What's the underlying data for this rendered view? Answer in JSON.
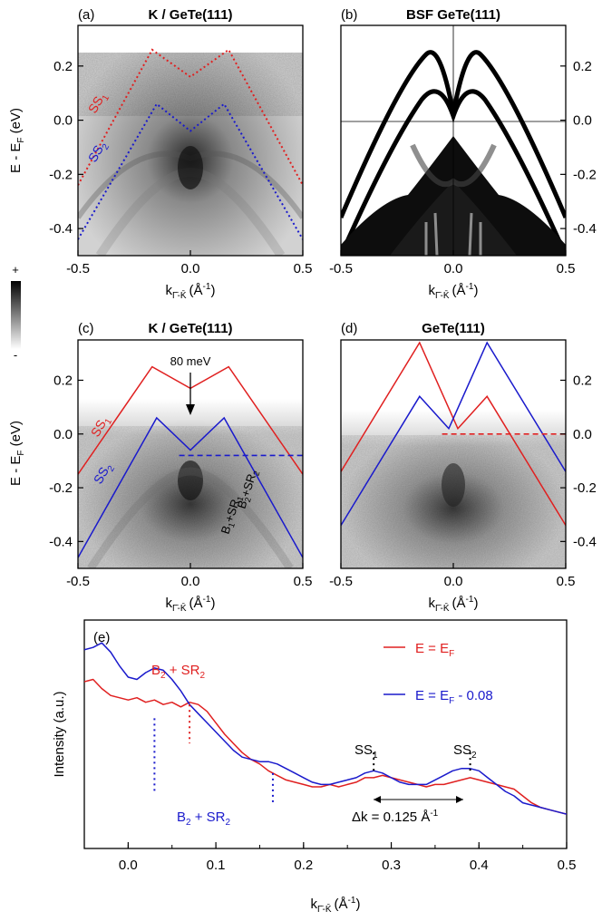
{
  "colorbar": {
    "plus": "+",
    "minus": "-"
  },
  "colors": {
    "ss1": "#e02020",
    "ss2": "#1a1acc",
    "dashed_red": "#e02020",
    "dashed_blue": "#1a1acc"
  },
  "chart_data": [
    {
      "panel": "(a)",
      "title": "K / GeTe(111)",
      "type": "heatmap",
      "xlabel": "k",
      "xlabel_sub": "Γ̄-K̄",
      "xlabel_unit": "(Å",
      "xlabel_exp": "-1",
      "xlabel_close": ")",
      "ylabel": "E - E",
      "ylabel_sub": "F",
      "ylabel_unit": " (eV)",
      "xlim": [
        -0.5,
        0.5
      ],
      "ylim": [
        -0.5,
        0.35
      ],
      "xticks": [
        "-0.5",
        "0.0",
        "0.5"
      ],
      "yticks": [
        "0.2",
        "0.0",
        "-0.2",
        "-0.4"
      ],
      "curve_labels": [
        {
          "text": "SS",
          "sub": "1",
          "series": "SS1"
        },
        {
          "text": "SS",
          "sub": "2",
          "series": "SS2"
        }
      ],
      "series": [
        {
          "key": "SS1",
          "style": "dotted",
          "x": [
            -0.5,
            -0.17,
            0.0,
            0.17,
            0.5
          ],
          "y": [
            -0.24,
            0.26,
            0.16,
            0.26,
            -0.24
          ]
        },
        {
          "key": "SS2",
          "style": "dotted",
          "x": [
            -0.5,
            -0.15,
            0.0,
            0.15,
            0.5
          ],
          "y": [
            -0.44,
            0.06,
            -0.04,
            0.06,
            -0.44
          ]
        }
      ]
    },
    {
      "panel": "(b)",
      "title": "BSF GeTe(111)",
      "type": "heatmap",
      "xlabel": "k",
      "xlabel_sub": "Γ̄-K̄",
      "xlabel_unit": "(Å",
      "xlabel_exp": "-1",
      "xlabel_close": ")",
      "xlim": [
        -0.5,
        0.5
      ],
      "ylim": [
        -0.5,
        0.35
      ],
      "xticks": [
        "-0.5",
        "0.0",
        "0.5"
      ],
      "yticks": [
        "0.2",
        "0.0",
        "-0.2",
        "-0.4"
      ]
    },
    {
      "panel": "(c)",
      "title": "K / GeTe(111)",
      "type": "heatmap",
      "xlabel": "k",
      "xlabel_sub": "Γ̄-K̄",
      "xlabel_unit": "(Å",
      "xlabel_exp": "-1",
      "xlabel_close": ")",
      "ylabel": "E - E",
      "ylabel_sub": "F",
      "ylabel_unit": " (eV)",
      "xlim": [
        -0.5,
        0.5
      ],
      "ylim": [
        -0.5,
        0.35
      ],
      "xticks": [
        "-0.5",
        "0.0",
        "0.5"
      ],
      "yticks": [
        "0.2",
        "0.0",
        "-0.2",
        "-0.4"
      ],
      "annotation": "80 meV",
      "band_labels": [
        {
          "text": "B",
          "sub": "2",
          "rest": "+SR",
          "sub2": "2"
        },
        {
          "text": "B",
          "sub": "1",
          "rest": "+SR",
          "sub2": "1"
        }
      ],
      "curve_labels": [
        {
          "text": "SS",
          "sub": "1",
          "series": "SS1"
        },
        {
          "text": "SS",
          "sub": "2",
          "series": "SS2"
        }
      ],
      "fermi_line": {
        "y": -0.08,
        "x": [
          -0.05,
          0.5
        ]
      },
      "series": [
        {
          "key": "SS1",
          "style": "solid",
          "x": [
            -0.5,
            -0.17,
            0.0,
            0.17,
            0.5
          ],
          "y": [
            -0.15,
            0.25,
            0.17,
            0.25,
            -0.15
          ]
        },
        {
          "key": "SS2",
          "style": "solid",
          "x": [
            -0.5,
            -0.15,
            0.0,
            0.15,
            0.5
          ],
          "y": [
            -0.46,
            0.06,
            -0.06,
            0.06,
            -0.46
          ]
        }
      ]
    },
    {
      "panel": "(d)",
      "title": "GeTe(111)",
      "type": "heatmap",
      "xlabel": "k",
      "xlabel_sub": "Γ̄-K̄",
      "xlabel_unit": "(Å",
      "xlabel_exp": "-1",
      "xlabel_close": ")",
      "xlim": [
        -0.5,
        0.5
      ],
      "ylim": [
        -0.5,
        0.35
      ],
      "xticks": [
        "-0.5",
        "0.0",
        "0.5"
      ],
      "yticks": [
        "0.2",
        "0.0",
        "-0.2",
        "-0.4"
      ],
      "fermi_line": {
        "y": 0.0,
        "x": [
          -0.05,
          0.5
        ]
      },
      "series": [
        {
          "key": "SS1",
          "style": "solid",
          "x": [
            -0.5,
            -0.15,
            0.02,
            0.15,
            0.5
          ],
          "y": [
            -0.14,
            0.34,
            0.02,
            0.14,
            -0.34
          ]
        },
        {
          "key": "SS2",
          "style": "solid",
          "x": [
            -0.5,
            -0.15,
            -0.02,
            0.15,
            0.5
          ],
          "y": [
            -0.34,
            0.14,
            0.02,
            0.34,
            -0.14
          ]
        }
      ]
    },
    {
      "panel": "(e)",
      "type": "line",
      "xlabel": "k",
      "xlabel_sub": "Γ̄-K̄",
      "xlabel_unit": "(Å",
      "xlabel_exp": "-1",
      "xlabel_close": ")",
      "ylabel": "Intensity (a.u.)",
      "xlim": [
        -0.05,
        0.5
      ],
      "ylim": [
        0,
        1
      ],
      "xticks": [
        "0.0",
        "0.1",
        "0.2",
        "0.3",
        "0.4",
        "0.5"
      ],
      "legend": [
        {
          "key": "red",
          "label_a": "E = E",
          "label_sub": "F",
          "label_b": ""
        },
        {
          "key": "blue",
          "label_a": "E = E",
          "label_sub": "F",
          "label_b": " - 0.08"
        }
      ],
      "annotations": {
        "b2_red": {
          "text": "B",
          "sub": "2",
          "rest": " + SR",
          "sub2": "2"
        },
        "b2_blue": {
          "text": "B",
          "sub": "2",
          "rest": " + SR",
          "sub2": "2"
        },
        "ss1": {
          "text": "SS",
          "sub": "1"
        },
        "ss2": {
          "text": "SS",
          "sub": "2"
        },
        "dk": {
          "text": "Δk = 0.125 Å",
          "exp": "-1"
        }
      },
      "markers": [
        {
          "key": "red",
          "x": 0.07
        },
        {
          "key": "blue",
          "x": 0.03
        },
        {
          "key": "blue",
          "x": 0.165
        },
        {
          "key": "black",
          "x": 0.28
        },
        {
          "key": "black",
          "x": 0.39
        }
      ],
      "series": [
        {
          "key": "red",
          "x": [
            -0.05,
            -0.04,
            -0.03,
            -0.02,
            -0.01,
            0.0,
            0.01,
            0.02,
            0.03,
            0.04,
            0.05,
            0.06,
            0.07,
            0.08,
            0.09,
            0.1,
            0.11,
            0.12,
            0.13,
            0.14,
            0.15,
            0.16,
            0.17,
            0.18,
            0.19,
            0.2,
            0.21,
            0.22,
            0.23,
            0.24,
            0.25,
            0.26,
            0.27,
            0.28,
            0.29,
            0.3,
            0.31,
            0.32,
            0.33,
            0.34,
            0.35,
            0.36,
            0.37,
            0.38,
            0.39,
            0.4,
            0.41,
            0.42,
            0.43,
            0.44,
            0.45,
            0.46,
            0.47,
            0.48,
            0.49,
            0.5
          ],
          "y": [
            0.73,
            0.74,
            0.7,
            0.67,
            0.66,
            0.65,
            0.66,
            0.64,
            0.65,
            0.63,
            0.64,
            0.62,
            0.64,
            0.63,
            0.6,
            0.55,
            0.5,
            0.46,
            0.42,
            0.39,
            0.37,
            0.34,
            0.32,
            0.3,
            0.29,
            0.28,
            0.27,
            0.27,
            0.28,
            0.27,
            0.28,
            0.29,
            0.31,
            0.31,
            0.32,
            0.31,
            0.3,
            0.29,
            0.28,
            0.27,
            0.28,
            0.28,
            0.29,
            0.3,
            0.31,
            0.3,
            0.29,
            0.28,
            0.27,
            0.26,
            0.23,
            0.2,
            0.18,
            0.17,
            0.16,
            0.15
          ]
        },
        {
          "key": "blue",
          "x": [
            -0.05,
            -0.04,
            -0.03,
            -0.02,
            -0.01,
            0.0,
            0.01,
            0.02,
            0.03,
            0.04,
            0.05,
            0.06,
            0.07,
            0.08,
            0.09,
            0.1,
            0.11,
            0.12,
            0.13,
            0.14,
            0.15,
            0.16,
            0.17,
            0.18,
            0.19,
            0.2,
            0.21,
            0.22,
            0.23,
            0.24,
            0.25,
            0.26,
            0.27,
            0.28,
            0.29,
            0.3,
            0.31,
            0.32,
            0.33,
            0.34,
            0.35,
            0.36,
            0.37,
            0.38,
            0.39,
            0.4,
            0.41,
            0.42,
            0.43,
            0.44,
            0.45,
            0.46,
            0.47,
            0.48,
            0.49,
            0.5
          ],
          "y": [
            0.87,
            0.88,
            0.9,
            0.86,
            0.8,
            0.75,
            0.74,
            0.77,
            0.79,
            0.78,
            0.74,
            0.69,
            0.63,
            0.59,
            0.55,
            0.51,
            0.47,
            0.43,
            0.4,
            0.39,
            0.38,
            0.38,
            0.37,
            0.35,
            0.33,
            0.31,
            0.29,
            0.28,
            0.28,
            0.29,
            0.3,
            0.31,
            0.33,
            0.34,
            0.33,
            0.31,
            0.29,
            0.28,
            0.28,
            0.28,
            0.3,
            0.32,
            0.34,
            0.35,
            0.35,
            0.34,
            0.31,
            0.28,
            0.25,
            0.23,
            0.2,
            0.19,
            0.18,
            0.17,
            0.16,
            0.15
          ]
        }
      ]
    }
  ]
}
